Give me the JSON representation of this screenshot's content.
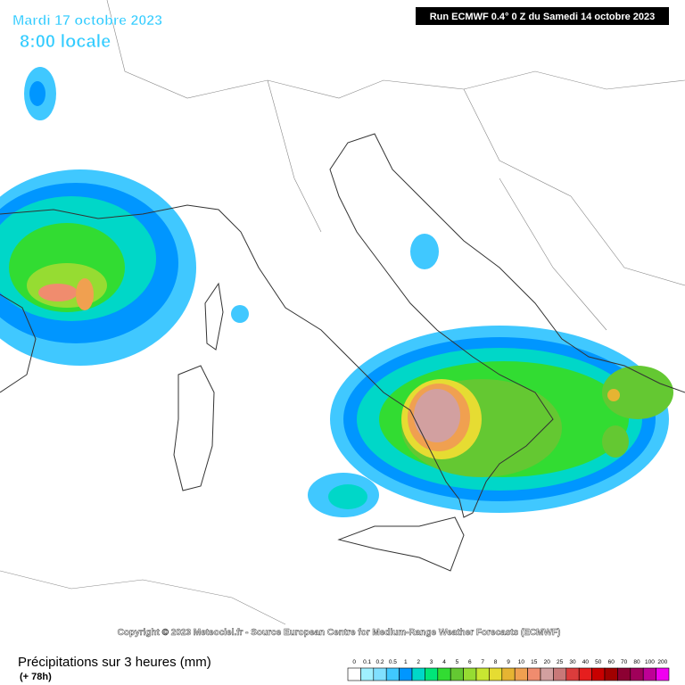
{
  "header": {
    "date": "Mardi 17 octobre 2023",
    "time": "8:00 locale",
    "run": "Run ECMWF 0.4° 0 Z du Samedi 14 octobre 2023"
  },
  "copyright": "Copyright © 2023 Meteociel.fr - Source European Centre for Medium-Range Weather Forecasts (ECMWF)",
  "footer": {
    "title": "Précipitations sur 3 heures (mm)",
    "lead": "(+ 78h)"
  },
  "legend": {
    "labels": [
      "0",
      "0.1",
      "0.2",
      "0.5",
      "1",
      "2",
      "3",
      "4",
      "5",
      "6",
      "7",
      "8",
      "9",
      "10",
      "15",
      "20",
      "25",
      "30",
      "40",
      "50",
      "60",
      "70",
      "80",
      "100",
      "200"
    ],
    "colors": [
      "#ffffff",
      "#a0f0ff",
      "#80e0ff",
      "#40c8ff",
      "#0096ff",
      "#00d7c8",
      "#00e678",
      "#32dc32",
      "#64c832",
      "#96dc32",
      "#c8e632",
      "#e6dc32",
      "#e6b432",
      "#f0a050",
      "#f08c6e",
      "#d2a0a0",
      "#c87878",
      "#dc3c3c",
      "#e61e1e",
      "#c80000",
      "#a00000",
      "#8c0032",
      "#a0005a",
      "#be0096",
      "#f000f0"
    ]
  }
}
